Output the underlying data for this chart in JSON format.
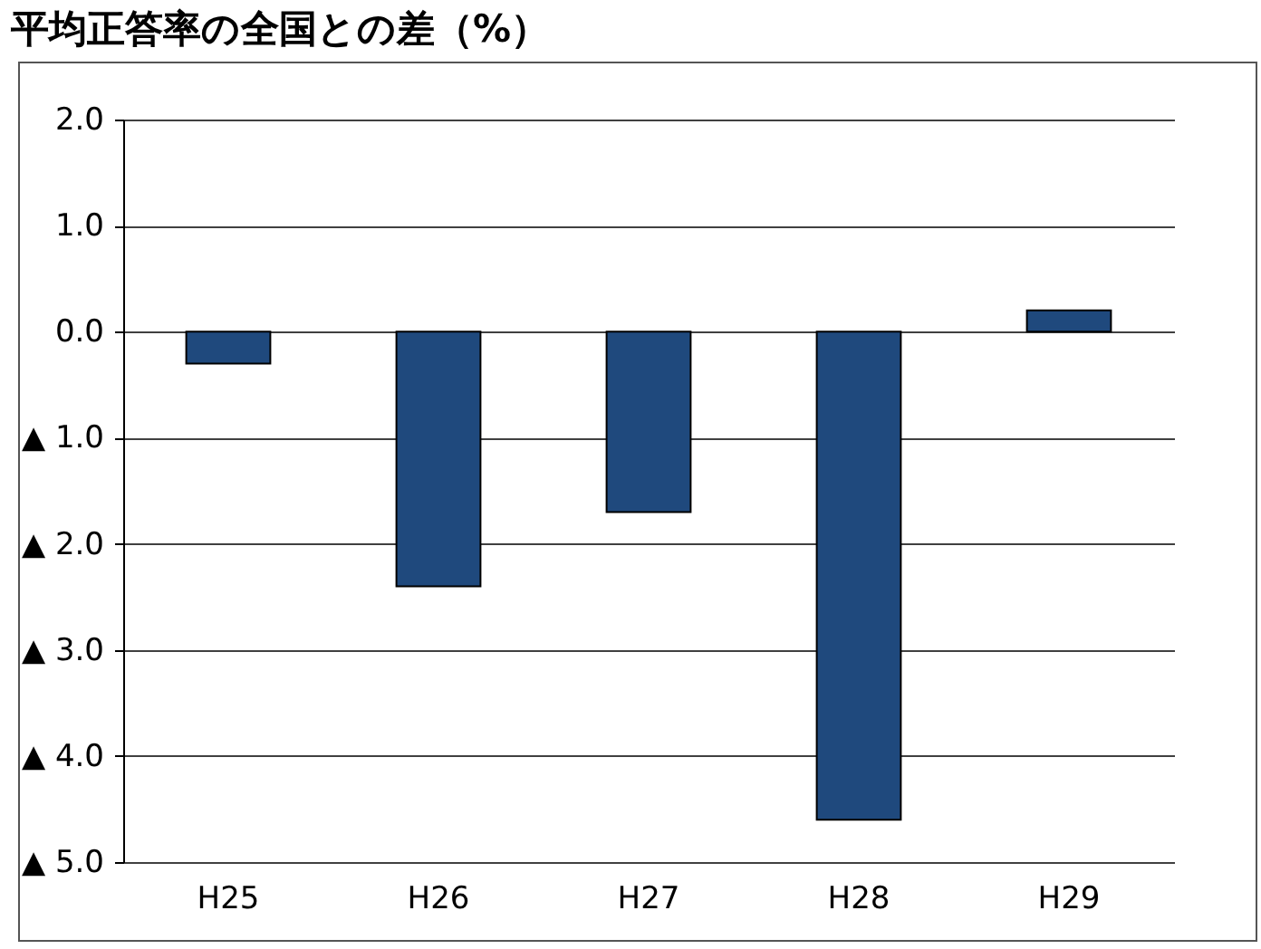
{
  "chart_data": {
    "type": "bar",
    "title": "平均正答率の全国との差（%）",
    "categories": [
      "H25",
      "H26",
      "H27",
      "H28",
      "H29"
    ],
    "values": [
      -0.3,
      -2.4,
      -1.7,
      -4.6,
      0.2
    ],
    "color": "#1f497d",
    "ylim": [
      -5,
      2
    ],
    "yticks": [
      {
        "value": 2,
        "label": "2.0"
      },
      {
        "value": 1,
        "label": "1.0"
      },
      {
        "value": 0,
        "label": "0.0"
      },
      {
        "value": -1,
        "label": "▲ 1.0"
      },
      {
        "value": -2,
        "label": "▲ 2.0"
      },
      {
        "value": -3,
        "label": "▲ 3.0"
      },
      {
        "value": -4,
        "label": "▲ 4.0"
      },
      {
        "value": -5,
        "label": "▲ 5.0"
      }
    ],
    "grid": "y"
  }
}
